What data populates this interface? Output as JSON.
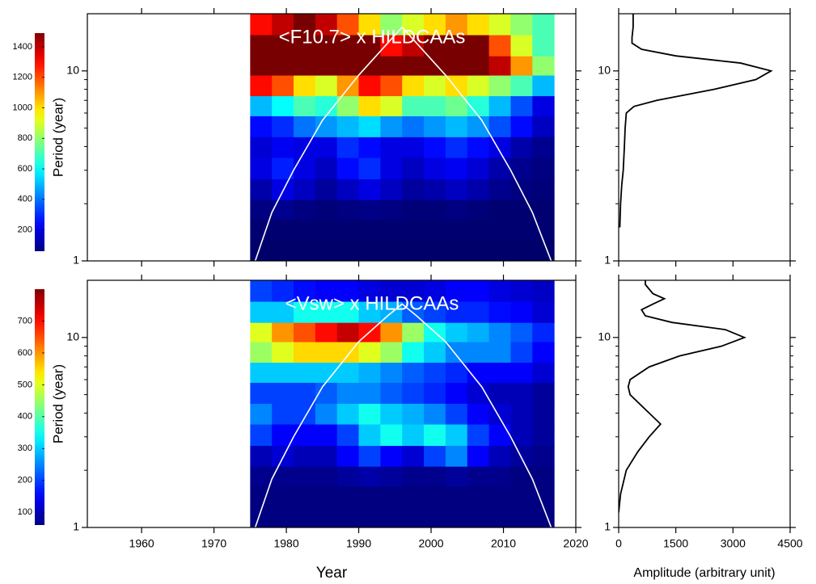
{
  "chart_data": [
    {
      "type": "heatmap",
      "title": "<F10.7> x HILDCAAs",
      "ylabel": "Period (year)",
      "colormap": "jet",
      "xlim": [
        1952.5,
        2020
      ],
      "ylim": [
        1,
        20
      ],
      "ylog": true,
      "yticks": [
        1,
        10
      ],
      "yminorticks": [
        2,
        3,
        4,
        5,
        6,
        7,
        8,
        9
      ],
      "x_bins": [
        1975,
        1978,
        1981,
        1984,
        1987,
        1990,
        1993,
        1996,
        1999,
        2002,
        2005,
        2008,
        2011,
        2014,
        2017
      ],
      "y_bins": [
        1,
        1.3,
        1.65,
        2.1,
        2.7,
        3.5,
        4.5,
        5.8,
        7.4,
        9.5,
        12,
        15.5,
        20
      ],
      "z": [
        [
          30,
          30,
          30,
          30,
          30,
          30,
          30,
          30,
          30,
          30,
          30,
          30,
          30,
          30
        ],
        [
          40,
          40,
          40,
          40,
          40,
          40,
          40,
          40,
          40,
          40,
          40,
          40,
          40,
          40
        ],
        [
          60,
          80,
          60,
          50,
          60,
          70,
          60,
          50,
          50,
          60,
          50,
          40,
          40,
          40
        ],
        [
          120,
          200,
          150,
          100,
          150,
          200,
          150,
          100,
          120,
          150,
          120,
          80,
          60,
          50
        ],
        [
          200,
          280,
          200,
          150,
          250,
          300,
          200,
          150,
          200,
          220,
          180,
          120,
          80,
          60
        ],
        [
          180,
          220,
          200,
          200,
          300,
          250,
          200,
          200,
          250,
          300,
          250,
          200,
          120,
          80
        ],
        [
          250,
          300,
          400,
          450,
          500,
          550,
          450,
          400,
          450,
          500,
          450,
          350,
          250,
          150
        ],
        [
          500,
          600,
          700,
          650,
          800,
          1000,
          900,
          700,
          700,
          750,
          650,
          500,
          350,
          200
        ],
        [
          1300,
          1200,
          1000,
          900,
          1100,
          1300,
          1200,
          1000,
          900,
          1000,
          900,
          800,
          700,
          500
        ],
        [
          1500,
          1500,
          1500,
          1500,
          1500,
          1500,
          1500,
          1500,
          1500,
          1500,
          1500,
          1400,
          1100,
          800
        ],
        [
          1500,
          1500,
          1500,
          1500,
          1500,
          1500,
          1300,
          1400,
          1500,
          1500,
          1500,
          1200,
          900,
          700
        ],
        [
          1300,
          1400,
          1500,
          1400,
          1200,
          1000,
          800,
          900,
          1000,
          1100,
          1000,
          900,
          800,
          700
        ]
      ],
      "colorbar": {
        "lim": [
          60,
          1490
        ],
        "ticks": [
          200,
          400,
          600,
          800,
          1000,
          1200,
          1400
        ]
      },
      "coi": {
        "color": "#ffffff",
        "x": [
          1975.7,
          1978,
          1981,
          1985,
          1990,
          1994,
          1996,
          1998,
          2002,
          2007,
          2011,
          2014,
          2016.6
        ],
        "period": [
          1,
          1.8,
          3,
          5.5,
          9.5,
          14,
          17,
          14,
          9.5,
          5.5,
          3,
          1.8,
          1
        ]
      }
    },
    {
      "type": "line",
      "color": "#000000",
      "xlim": [
        0,
        4500
      ],
      "ylim": [
        1,
        20
      ],
      "ylog": true,
      "yticks": [
        1,
        10
      ],
      "yminorticks": [
        2,
        3,
        4,
        5,
        6,
        7,
        8,
        9
      ],
      "period": [
        1.5,
        2,
        2.5,
        3,
        4,
        5,
        6,
        6.5,
        7,
        8,
        9,
        10,
        11,
        12,
        13,
        14,
        15,
        17,
        20
      ],
      "values": [
        30,
        50,
        80,
        120,
        150,
        170,
        200,
        400,
        1000,
        2500,
        3600,
        4000,
        3200,
        1500,
        600,
        350,
        350,
        380,
        380
      ]
    },
    {
      "type": "heatmap",
      "title": "<Vsw> x HILDCAAs",
      "ylabel": "Period (year)",
      "xlabel": "Year",
      "colormap": "jet",
      "xlim": [
        1952.5,
        2020
      ],
      "xticks": [
        1960,
        1970,
        1980,
        1990,
        2000,
        2010,
        2020
      ],
      "ylim": [
        1,
        20
      ],
      "ylog": true,
      "yticks": [
        1,
        10
      ],
      "yminorticks": [
        2,
        3,
        4,
        5,
        6,
        7,
        8,
        9
      ],
      "x_bins": [
        1975,
        1978,
        1981,
        1984,
        1987,
        1990,
        1993,
        1996,
        1999,
        2002,
        2005,
        2008,
        2011,
        2014,
        2017
      ],
      "y_bins": [
        1,
        1.3,
        1.65,
        2.1,
        2.7,
        3.5,
        4.5,
        5.8,
        7.4,
        9.5,
        12,
        15.5,
        20
      ],
      "z": [
        [
          60,
          60,
          60,
          60,
          60,
          60,
          60,
          60,
          60,
          60,
          60,
          60,
          60,
          60
        ],
        [
          60,
          60,
          60,
          60,
          60,
          60,
          60,
          60,
          60,
          60,
          60,
          60,
          60,
          60
        ],
        [
          70,
          70,
          70,
          70,
          80,
          90,
          80,
          70,
          70,
          80,
          70,
          70,
          60,
          60
        ],
        [
          100,
          120,
          100,
          100,
          150,
          200,
          150,
          120,
          200,
          250,
          150,
          100,
          80,
          70
        ],
        [
          200,
          150,
          150,
          150,
          200,
          300,
          350,
          300,
          350,
          300,
          200,
          150,
          100,
          80
        ],
        [
          250,
          200,
          200,
          250,
          300,
          350,
          300,
          280,
          250,
          200,
          150,
          120,
          100,
          80
        ],
        [
          200,
          200,
          200,
          220,
          250,
          250,
          220,
          200,
          180,
          150,
          120,
          100,
          100,
          80
        ],
        [
          300,
          300,
          300,
          300,
          300,
          280,
          250,
          220,
          200,
          180,
          150,
          150,
          150,
          120
        ],
        [
          450,
          500,
          550,
          550,
          550,
          500,
          450,
          350,
          300,
          250,
          250,
          250,
          200,
          150
        ],
        [
          500,
          600,
          650,
          700,
          750,
          700,
          600,
          450,
          350,
          300,
          280,
          250,
          220,
          180
        ],
        [
          300,
          300,
          350,
          350,
          350,
          300,
          280,
          220,
          200,
          180,
          180,
          160,
          150,
          120
        ],
        [
          200,
          180,
          160,
          150,
          150,
          130,
          120,
          120,
          130,
          150,
          150,
          130,
          120,
          110
        ]
      ],
      "colorbar": {
        "lim": [
          60,
          800
        ],
        "ticks": [
          100,
          200,
          300,
          400,
          500,
          600,
          700
        ]
      },
      "coi": {
        "color": "#ffffff",
        "x": [
          1975.7,
          1978,
          1981,
          1985,
          1990,
          1994,
          1996,
          1998,
          2002,
          2007,
          2011,
          2014,
          2016.6
        ],
        "period": [
          1,
          1.8,
          3,
          5.5,
          9.5,
          13,
          15,
          13,
          9.5,
          5.5,
          3,
          1.8,
          1
        ]
      }
    },
    {
      "type": "line",
      "color": "#000000",
      "xlabel": "Amplitude (arbitrary unit)",
      "xlim": [
        0,
        4500
      ],
      "xticks": [
        0,
        1500,
        3000,
        4500
      ],
      "ylim": [
        1,
        20
      ],
      "ylog": true,
      "yticks": [
        1,
        10
      ],
      "yminorticks": [
        2,
        3,
        4,
        5,
        6,
        7,
        8,
        9
      ],
      "period": [
        1.2,
        1.5,
        2,
        2.5,
        3,
        3.5,
        4,
        5,
        5.5,
        6,
        7,
        8,
        9,
        10,
        11,
        12,
        13,
        14,
        15,
        16,
        17,
        19,
        20
      ],
      "values": [
        0,
        50,
        200,
        500,
        800,
        1100,
        800,
        300,
        250,
        300,
        800,
        1600,
        2700,
        3300,
        2800,
        1400,
        700,
        600,
        900,
        1200,
        900,
        700,
        700
      ]
    }
  ]
}
